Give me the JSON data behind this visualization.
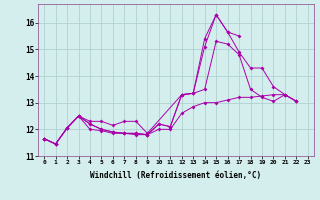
{
  "xlabel": "Windchill (Refroidissement éolien,°C)",
  "background_color": "#d4eeee",
  "line_color": "#aa00aa",
  "grid_color": "#aacccc",
  "xlim": [
    -0.5,
    23.5
  ],
  "ylim": [
    11.0,
    16.7
  ],
  "yticks": [
    11,
    12,
    13,
    14,
    15,
    16
  ],
  "xticks": [
    0,
    1,
    2,
    3,
    4,
    5,
    6,
    7,
    8,
    9,
    10,
    11,
    12,
    13,
    14,
    15,
    16,
    17,
    18,
    19,
    20,
    21,
    22,
    23
  ],
  "series": [
    {
      "x": [
        0,
        1,
        2,
        3,
        4,
        5,
        6,
        7,
        8,
        9,
        10,
        11,
        12,
        13,
        14,
        15,
        16,
        17,
        18,
        19,
        20,
        21,
        22,
        23
      ],
      "y": [
        11.65,
        11.45,
        12.05,
        12.5,
        12.2,
        12.0,
        11.9,
        11.85,
        11.85,
        11.8,
        12.2,
        12.1,
        13.3,
        13.35,
        13.5,
        15.3,
        15.2,
        14.8,
        13.5,
        13.2,
        13.05,
        13.3,
        13.05,
        null
      ]
    },
    {
      "x": [
        0,
        1,
        2,
        3,
        4,
        5,
        6,
        7,
        8,
        9,
        10,
        11,
        12,
        13,
        14,
        15,
        16,
        17,
        18,
        19,
        20,
        21,
        22,
        23
      ],
      "y": [
        11.65,
        11.45,
        12.05,
        12.5,
        12.3,
        12.3,
        12.15,
        12.3,
        12.3,
        11.85,
        null,
        null,
        13.3,
        13.35,
        15.1,
        16.3,
        15.65,
        15.5,
        null,
        null,
        null,
        null,
        null,
        null
      ]
    },
    {
      "x": [
        0,
        1,
        2,
        3,
        4,
        5,
        6,
        7,
        8,
        9,
        10,
        11,
        12,
        13,
        14,
        15,
        16,
        17,
        18,
        19,
        20,
        21,
        22,
        23
      ],
      "y": [
        11.65,
        11.45,
        12.05,
        12.5,
        12.2,
        12.0,
        11.9,
        11.85,
        11.85,
        11.8,
        12.2,
        12.1,
        13.3,
        13.35,
        15.4,
        16.3,
        15.65,
        14.9,
        14.3,
        14.3,
        13.6,
        13.3,
        13.05,
        null
      ]
    },
    {
      "x": [
        0,
        1,
        2,
        3,
        4,
        5,
        6,
        7,
        8,
        9,
        10,
        11,
        12,
        13,
        14,
        15,
        16,
        17,
        18,
        19,
        20,
        21,
        22,
        23
      ],
      "y": [
        11.65,
        11.45,
        12.05,
        12.5,
        12.0,
        11.95,
        11.85,
        11.85,
        11.8,
        11.8,
        12.0,
        12.0,
        12.6,
        12.85,
        13.0,
        13.0,
        13.1,
        13.2,
        13.2,
        13.25,
        13.3,
        13.3,
        13.05,
        null
      ]
    }
  ]
}
